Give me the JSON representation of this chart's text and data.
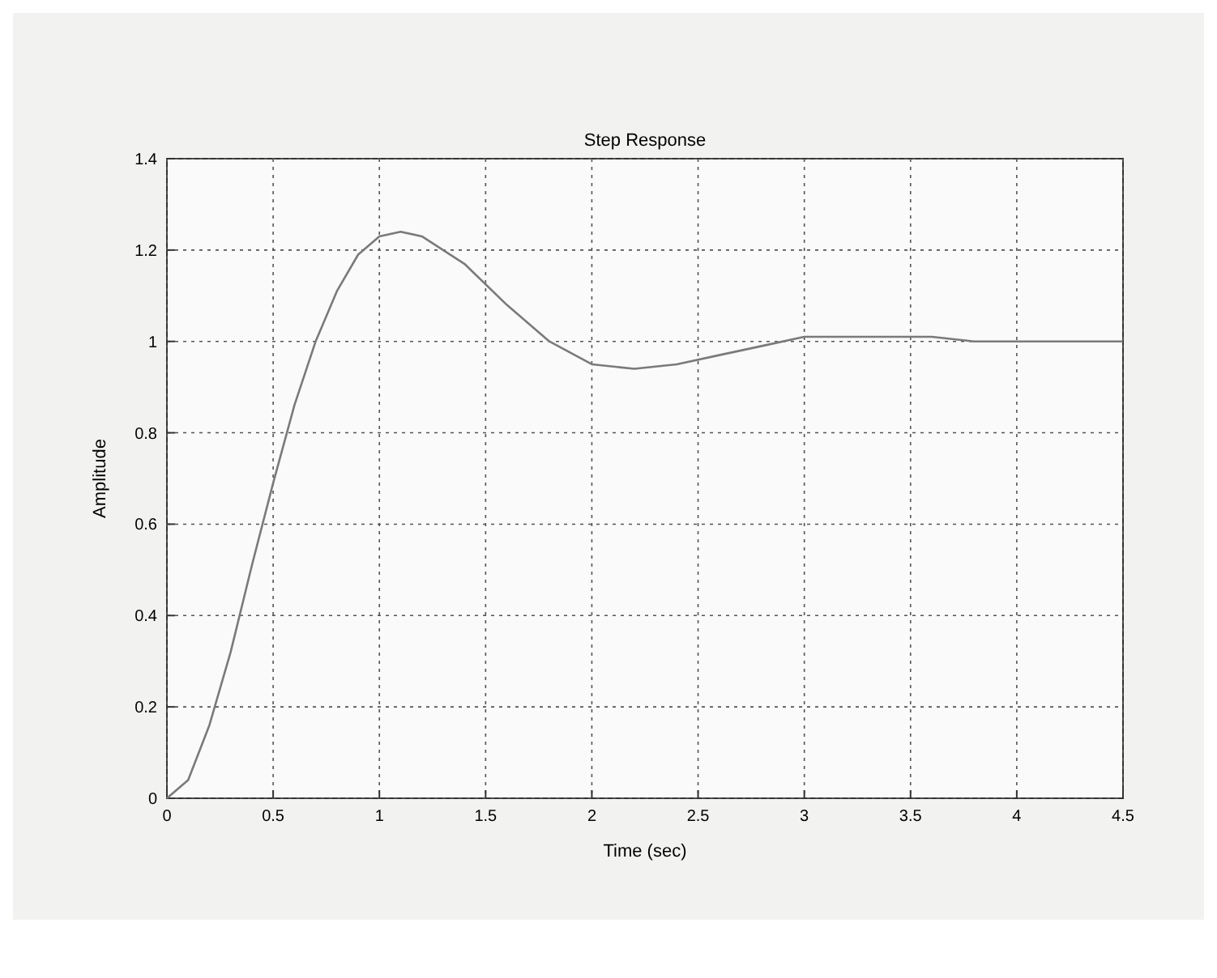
{
  "chart_data": {
    "type": "line",
    "title": "Step Response",
    "xlabel": "Time (sec)",
    "ylabel": "Amplitude",
    "xlim": [
      0,
      4.5
    ],
    "ylim": [
      0,
      1.4
    ],
    "xticks": [
      0,
      0.5,
      1,
      1.5,
      2,
      2.5,
      3,
      3.5,
      4,
      4.5
    ],
    "yticks": [
      0,
      0.2,
      0.4,
      0.6,
      0.8,
      1,
      1.2,
      1.4
    ],
    "grid": true,
    "series": [
      {
        "color": "#7a7a7a",
        "x": [
          0,
          0.1,
          0.2,
          0.3,
          0.4,
          0.5,
          0.6,
          0.7,
          0.8,
          0.9,
          1.0,
          1.1,
          1.2,
          1.4,
          1.6,
          1.8,
          2.0,
          2.2,
          2.4,
          2.6,
          2.8,
          3.0,
          3.2,
          3.4,
          3.6,
          3.8,
          4.0,
          4.5
        ],
        "values": [
          0,
          0.04,
          0.16,
          0.32,
          0.51,
          0.69,
          0.86,
          1.0,
          1.11,
          1.19,
          1.23,
          1.24,
          1.23,
          1.17,
          1.08,
          1.0,
          0.95,
          0.94,
          0.95,
          0.97,
          0.99,
          1.01,
          1.01,
          1.01,
          1.01,
          1.0,
          1.0,
          1.0
        ]
      }
    ]
  }
}
